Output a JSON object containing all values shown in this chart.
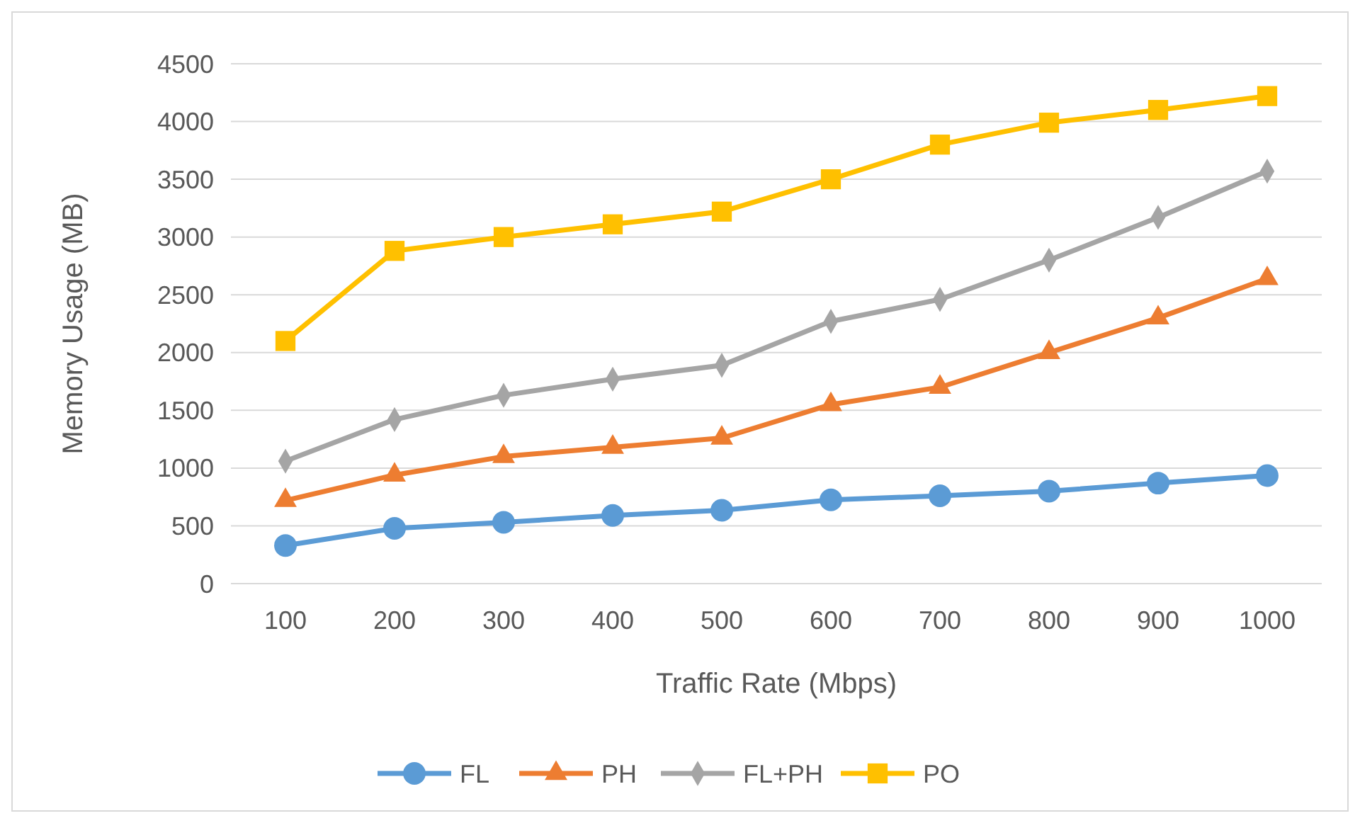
{
  "chart_data": {
    "type": "line",
    "xlabel": "Traffic Rate (Mbps)",
    "ylabel": "Memory Usage (MB)",
    "categories": [
      "100",
      "200",
      "300",
      "400",
      "500",
      "600",
      "700",
      "800",
      "900",
      "1000"
    ],
    "ylim": [
      0,
      4500
    ],
    "yticks": [
      0,
      500,
      1000,
      1500,
      2000,
      2500,
      3000,
      3500,
      4000,
      4500
    ],
    "grid": "y",
    "legend": "bottom",
    "line_style": "solid",
    "series": [
      {
        "name": "FL",
        "color": "#5b9bd5",
        "marker": "circle",
        "values": [
          330,
          478,
          530,
          590,
          635,
          725,
          760,
          800,
          870,
          935
        ]
      },
      {
        "name": "PH",
        "color": "#ed7d31",
        "marker": "triangle",
        "values": [
          720,
          940,
          1100,
          1180,
          1260,
          1550,
          1700,
          2000,
          2300,
          2640
        ]
      },
      {
        "name": "FL+PH",
        "color": "#a5a5a5",
        "marker": "diamond",
        "values": [
          1060,
          1420,
          1630,
          1770,
          1890,
          2270,
          2460,
          2800,
          3170,
          3570
        ]
      },
      {
        "name": "PO",
        "color": "#ffc000",
        "marker": "square",
        "values": [
          2100,
          2880,
          3000,
          3110,
          3220,
          3500,
          3800,
          3990,
          4100,
          4220
        ]
      }
    ]
  }
}
